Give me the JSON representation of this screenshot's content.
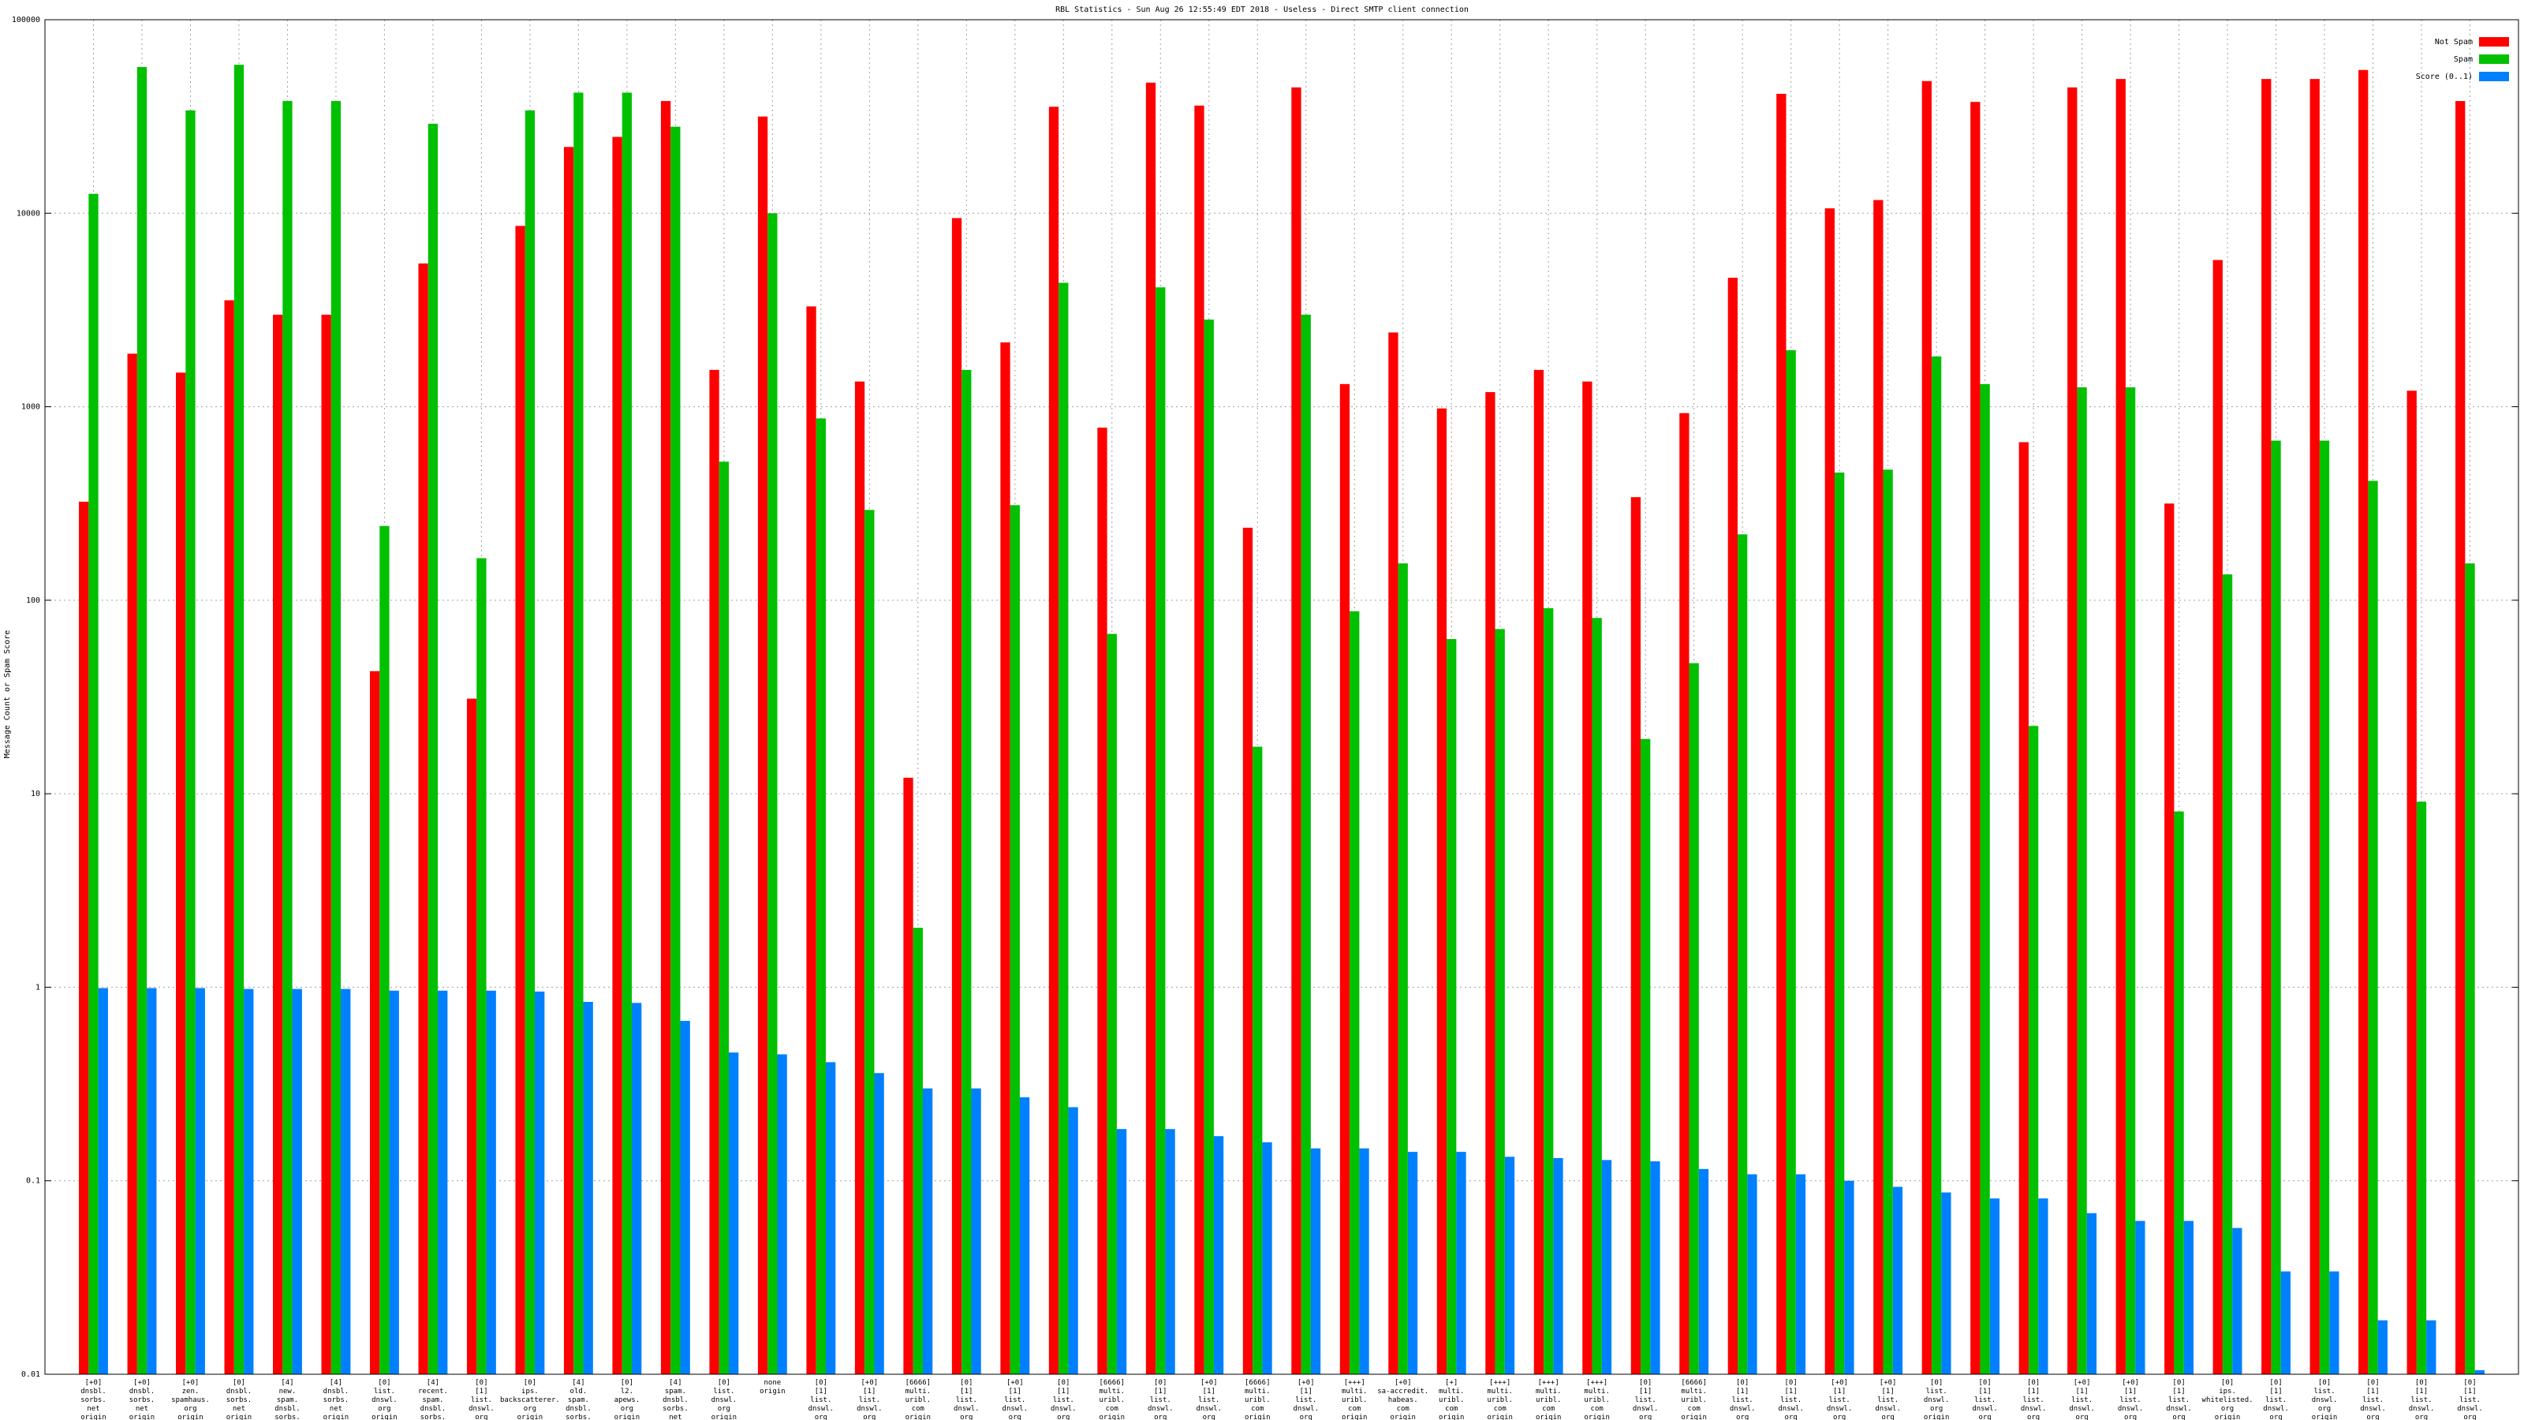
{
  "chart_data": {
    "type": "bar",
    "title": "RBL Statistics - Sun Aug 26 12:55:49 EDT 2018 - Useless - Direct SMTP client connection",
    "y_label": "Message Count or Spam Score",
    "log_scale": true,
    "grid": true,
    "legend_position": "top-right",
    "ylim": [
      0.01,
      100000
    ],
    "yticks": [
      0.01,
      0.1,
      1,
      10,
      100,
      1000,
      10000,
      100000
    ],
    "categories": [
      "[+0]\ndnsbl.\nsorbs.\nnet\norigin",
      "[+0]\ndnsbl.\nsorbs.\nnet\norigin",
      "[+0]\nzen.\nspamhaus.\norg\norigin",
      "[0]\ndnsbl.\nsorbs.\nnet\norigin",
      "[4]\nnew.\nspam.\ndnsbl.\nsorbs.\nnet\norigin",
      "[4]\ndnsbl.\nsorbs.\nnet\norigin",
      "[0]\nlist.\ndnswl.\norg\norigin",
      "[4]\nrecent.\nspam.\ndnsbl.\nsorbs.\nnet\norigin",
      "[0]\n[1]\nlist.\ndnswl.\norg\norigin",
      "[0]\nips.\nbackscatterer.\norg\norigin",
      "[4]\nold.\nspam.\ndnsbl.\nsorbs.\nnet\norigin",
      "[0]\nl2.\napews.\norg\norigin",
      "[4]\nspam.\ndnsbl.\nsorbs.\nnet\norigin",
      "[0]\nlist.\ndnswl.\norg\norigin",
      "none\norigin",
      "[0]\n[1]\nlist.\ndnswl.\norg\norigin",
      "[+0]\n[1]\nlist.\ndnswl.\norg\norigin",
      "[6666]\nmulti.\nuribl.\ncom\norigin",
      "[0]\n[1]\nlist.\ndnswl.\norg\norigin",
      "[+0]\n[1]\nlist.\ndnswl.\norg\norigin",
      "[0]\n[1]\nlist.\ndnswl.\norg\norigin",
      "[6666]\nmulti.\nuribl.\ncom\norigin",
      "[0]\n[1]\nlist.\ndnswl.\norg\norigin",
      "[+0]\n[1]\nlist.\ndnswl.\norg\norigin",
      "[6666]\nmulti.\nuribl.\ncom\norigin",
      "[+0]\n[1]\nlist.\ndnswl.\norg\norigin",
      "[+++]\nmulti.\nuribl.\ncom\norigin",
      "[+0]\nsa-accredit.\nhabeas.\ncom\norigin",
      "[+]\nmulti.\nuribl.\ncom\norigin",
      "[+++]\nmulti.\nuribl.\ncom\norigin",
      "[+++]\nmulti.\nuribl.\ncom\norigin",
      "[+++]\nmulti.\nuribl.\ncom\norigin",
      "[0]\n[1]\nlist.\ndnswl.\norg\norigin",
      "[6666]\nmulti.\nuribl.\ncom\norigin",
      "[0]\n[1]\nlist.\ndnswl.\norg\norigin",
      "[0]\n[1]\nlist.\ndnswl.\norg\norigin",
      "[+0]\n[1]\nlist.\ndnswl.\norg\norigin",
      "[+0]\n[1]\nlist.\ndnswl.\norg\norigin",
      "[0]\nlist.\ndnswl.\norg\norigin",
      "[0]\n[1]\nlist.\ndnswl.\norg\norigin",
      "[0]\n[1]\nlist.\ndnswl.\norg\norigin",
      "[+0]\n[1]\nlist.\ndnswl.\norg\norigin",
      "[+0]\n[1]\nlist.\ndnswl.\norg\norigin",
      "[0]\n[1]\nlist.\ndnswl.\norg\norigin",
      "[0]\nips.\nwhitelisted.\norg\norigin",
      "[0]\n[1]\nlist.\ndnswl.\norg\norigin",
      "[0]\nlist.\ndnswl.\norg\norigin",
      "[0]\n[1]\nlist.\ndnswl.\norg\norigin",
      "[0]\n[1]\nlist.\ndnswl.\norg\norigin",
      "[0]\n[1]\nlist.\ndnswl.\norg\norigin"
    ],
    "series": [
      {
        "name": "Not Spam",
        "color": "#ff0000",
        "values": [
          323,
          1880,
          1500,
          3550,
          2990,
          2990,
          43,
          5500,
          31,
          8600,
          22000,
          24800,
          38000,
          1550,
          31600,
          3300,
          1350,
          12.1,
          9440,
          2150,
          35500,
          780,
          47300,
          36000,
          237,
          44700,
          1310,
          2420,
          980,
          1190,
          1550,
          1350,
          341,
          927,
          4640,
          41400,
          10600,
          11700,
          48200,
          37600,
          656,
          44700,
          49400,
          316,
          5730,
          49400,
          49400,
          55000,
          1210,
          38000
        ]
      },
      {
        "name": "Spam",
        "color": "#00c000",
        "values": [
          12600,
          57000,
          34000,
          58500,
          38000,
          38000,
          242,
          29000,
          165,
          34000,
          42000,
          42000,
          28000,
          520,
          10000,
          870,
          293,
          2.03,
          1550,
          310,
          4370,
          67,
          4140,
          2820,
          17.5,
          2990,
          87.7,
          155,
          63,
          71,
          91,
          81,
          19.2,
          47.3,
          219,
          1960,
          457,
          473,
          1820,
          1310,
          22.4,
          1260,
          1260,
          8.1,
          136,
          668,
          668,
          414,
          9.1,
          155
        ]
      },
      {
        "name": "Score (0..1)",
        "color": "#0080ff",
        "values": [
          0.99,
          0.99,
          0.99,
          0.98,
          0.98,
          0.98,
          0.96,
          0.96,
          0.96,
          0.95,
          0.84,
          0.83,
          0.67,
          0.46,
          0.45,
          0.41,
          0.36,
          0.3,
          0.3,
          0.27,
          0.24,
          0.185,
          0.185,
          0.17,
          0.158,
          0.147,
          0.147,
          0.141,
          0.141,
          0.133,
          0.131,
          0.128,
          0.126,
          0.115,
          0.108,
          0.108,
          0.1,
          0.093,
          0.087,
          0.081,
          0.081,
          0.068,
          0.062,
          0.062,
          0.057,
          0.034,
          0.034,
          0.019,
          0.019,
          0.0105
        ]
      }
    ]
  }
}
